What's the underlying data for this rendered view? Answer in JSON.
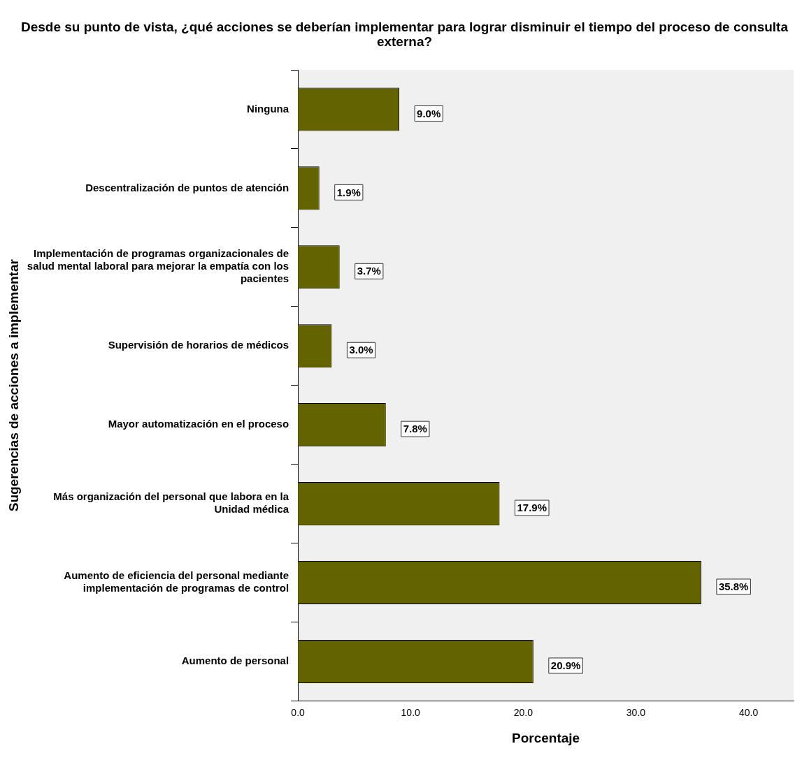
{
  "chart_data": {
    "type": "bar",
    "orientation": "horizontal",
    "title": "Desde  su punto de vista, ¿qué acciones se deberían implementar para lograr disminuir el tiempo del proceso de consulta externa?",
    "xlabel": "Porcentaje",
    "ylabel": "Sugerencias de acciones a implementar",
    "categories": [
      "Ninguna",
      "Descentralización de puntos de atención",
      "Implementación de programas organizacionales de salud mental laboral para mejorar la empatía con los pacientes",
      "Supervisión de horarios de médicos",
      "Mayor automatización en el proceso",
      "Más organización del personal que labora en la Unidad médica",
      "Aumento de eficiencia del personal mediante implementación de programas de control",
      "Aumento de personal"
    ],
    "values": [
      9.0,
      1.9,
      3.7,
      3.0,
      7.8,
      17.9,
      35.8,
      20.9
    ],
    "value_labels": [
      "9.0%",
      "1.9%",
      "3.7%",
      "3.0%",
      "7.8%",
      "17.9%",
      "35.8%",
      "20.9%"
    ],
    "color": "#636300",
    "xlim": [
      0,
      44
    ],
    "xticks": [
      {
        "value": 0,
        "label": "0.0"
      },
      {
        "value": 10,
        "label": "10.0"
      },
      {
        "value": 20,
        "label": "20.0"
      },
      {
        "value": 30,
        "label": "30.0"
      },
      {
        "value": 40,
        "label": "40.0"
      }
    ],
    "grid": false,
    "legend": false
  }
}
